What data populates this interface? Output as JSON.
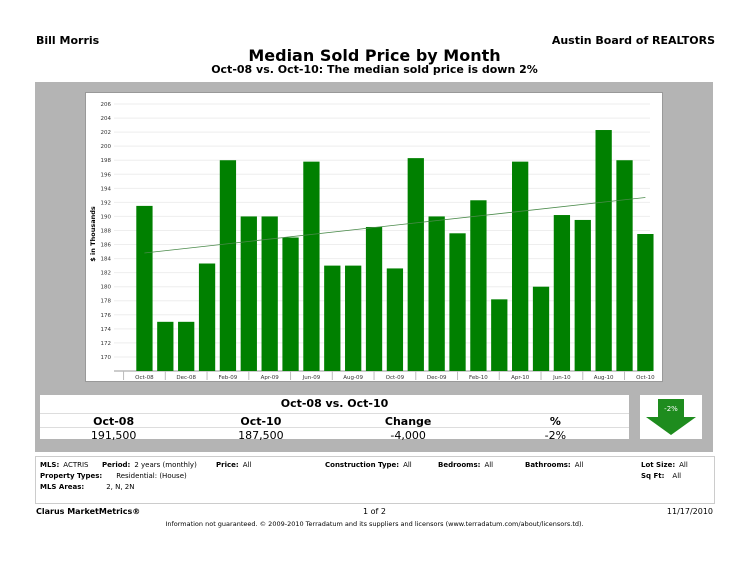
{
  "header": {
    "agent": "Bill Morris",
    "board": "Austin Board of REALTORS",
    "title": "Median Sold Price by Month",
    "subtitle": "Oct-08 vs. Oct-10:  The median sold price is down 2%"
  },
  "chart_data": {
    "type": "bar",
    "ylabel": "$ in Thousands",
    "ylim": [
      168,
      207
    ],
    "yticks": [
      170,
      172,
      174,
      176,
      178,
      180,
      182,
      184,
      186,
      188,
      190,
      192,
      194,
      196,
      198,
      200,
      202,
      204,
      206
    ],
    "categories": [
      "Oct-08",
      "Nov-08",
      "Dec-08",
      "Jan-09",
      "Feb-09",
      "Mar-09",
      "Apr-09",
      "May-09",
      "Jun-09",
      "Jul-09",
      "Aug-09",
      "Sep-09",
      "Oct-09",
      "Nov-09",
      "Dec-09",
      "Jan-10",
      "Feb-10",
      "Mar-10",
      "Apr-10",
      "May-10",
      "Jun-10",
      "Jul-10",
      "Aug-10",
      "Sep-10",
      "Oct-10"
    ],
    "xtick_labels": [
      "Oct-08",
      "Dec-08",
      "Feb-09",
      "Apr-09",
      "Jun-09",
      "Aug-09",
      "Oct-09",
      "Dec-09",
      "Feb-10",
      "Apr-10",
      "Jun-10",
      "Aug-10",
      "Oct-10"
    ],
    "values": [
      191.5,
      175,
      175,
      183.3,
      198,
      190,
      190,
      187,
      197.8,
      183,
      183,
      188.5,
      182.6,
      198.3,
      190,
      187.6,
      192.3,
      178.2,
      197.8,
      180,
      190.2,
      189.5,
      202.3,
      198,
      187.5
    ],
    "trendline": {
      "start": 184.8,
      "end": 192.7
    },
    "bar_color": "#008000",
    "trend_color": "#4a8a4a",
    "grid": true
  },
  "summary": {
    "heading": "Oct-08 vs. Oct-10",
    "columns": [
      "Oct-08",
      "Oct-10",
      "Change",
      "%"
    ],
    "values": [
      "191,500",
      "187,500",
      "-4,000",
      "-2%"
    ],
    "arrow_label": "-2%",
    "arrow_icon": "down-arrow"
  },
  "filters": {
    "mls_label": "MLS:",
    "mls": "ACTRIS",
    "period_label": "Period:",
    "period": "2 years (monthly)",
    "price_label": "Price:",
    "price": "All",
    "construction_label": "Construction Type:",
    "construction": "All",
    "bedrooms_label": "Bedrooms:",
    "bedrooms": "All",
    "bathrooms_label": "Bathrooms:",
    "bathrooms": "All",
    "lot_label": "Lot Size:",
    "lot": "All",
    "ptype_label": "Property Types:",
    "ptype": "Residential: (House)",
    "sqft_label": "Sq Ft:",
    "sqft": "All",
    "areas_label": "MLS Areas:",
    "areas": "2, N, 2N"
  },
  "footer": {
    "brand": "Clarus MarketMetrics®",
    "page": "1 of 2",
    "date": "11/17/2010",
    "disclaimer": "Information not guaranteed.  © 2009-2010 Terradatum and its suppliers and licensors (www.terradatum.com/about/licensors.td)."
  }
}
